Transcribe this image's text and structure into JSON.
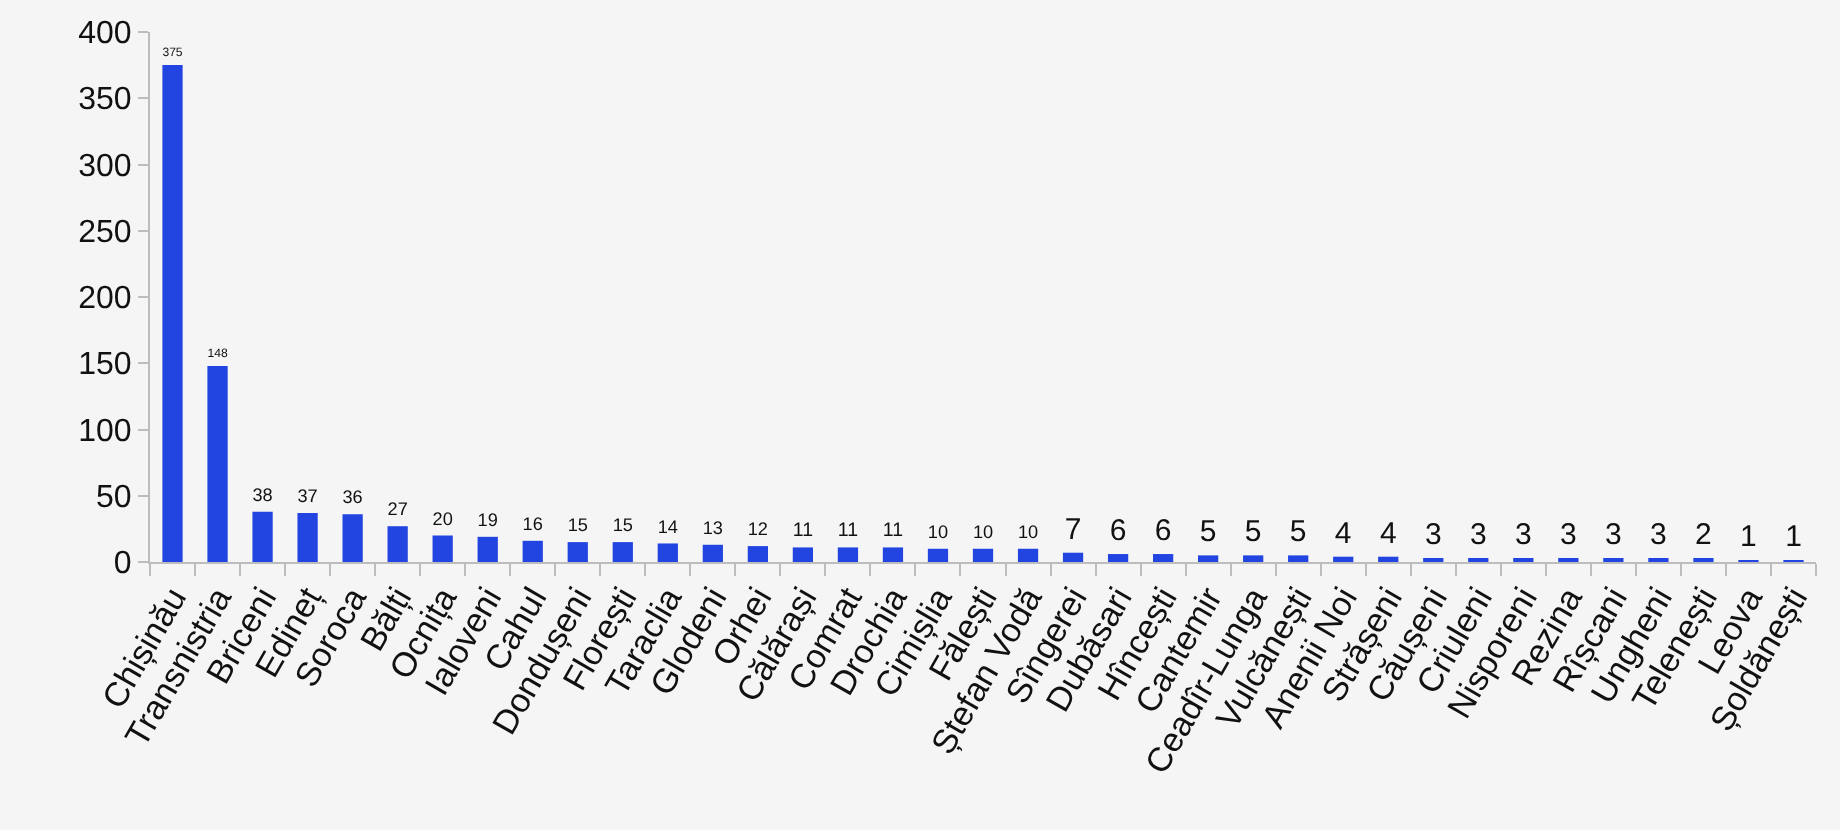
{
  "chart_data": {
    "type": "bar",
    "categories": [
      "Chișinău",
      "Transnistria",
      "Briceni",
      "Edineț",
      "Soroca",
      "Bălți",
      "Ocnița",
      "Ialoveni",
      "Cahul",
      "Dondușeni",
      "Florești",
      "Taraclia",
      "Glodeni",
      "Orhei",
      "Călărași",
      "Comrat",
      "Drochia",
      "Cimișlia",
      "Fălești",
      "Ștefan Vodă",
      "Sîngerei",
      "Dubăsari",
      "Hîncești",
      "Cantemir",
      "Ceadîr-Lunga",
      "Vulcănești",
      "Anenii Noi",
      "Strășeni",
      "Căușeni",
      "Criuleni",
      "Nisporeni",
      "Rezina",
      "Rîșcani",
      "Ungheni",
      "Telenești",
      "Leova",
      "Șoldănești"
    ],
    "values": [
      375,
      148,
      38,
      37,
      36,
      27,
      20,
      19,
      16,
      15,
      15,
      14,
      13,
      12,
      11,
      11,
      11,
      10,
      10,
      10,
      7,
      6,
      6,
      5,
      5,
      5,
      4,
      4,
      3,
      3,
      3,
      3,
      3,
      3,
      2,
      1,
      1
    ],
    "color": "#2244e0",
    "ylim": [
      0,
      400
    ],
    "yticks": [
      0,
      50,
      100,
      150,
      200,
      250,
      300,
      350,
      400
    ],
    "data_labels": true
  }
}
